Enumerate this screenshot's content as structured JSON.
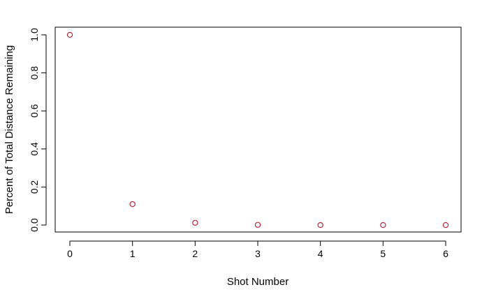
{
  "chart_data": {
    "type": "scatter",
    "title": "",
    "xlabel": "Shot Number",
    "ylabel": "Percent of Total Distance Remaining",
    "xlim": [
      0,
      6
    ],
    "ylim": [
      0,
      1
    ],
    "x_ticks": [
      "0",
      "1",
      "2",
      "3",
      "4",
      "5",
      "6"
    ],
    "y_ticks": [
      "0.0",
      "0.2",
      "0.4",
      "0.6",
      "0.8",
      "1.0"
    ],
    "grid": false,
    "marker": "open-circle",
    "point_color": "#b2182b",
    "x": [
      0,
      1,
      2,
      3,
      4,
      5,
      6
    ],
    "y": [
      1.0,
      0.11,
      0.012,
      0.001,
      0.0,
      0.0,
      0.0
    ]
  }
}
